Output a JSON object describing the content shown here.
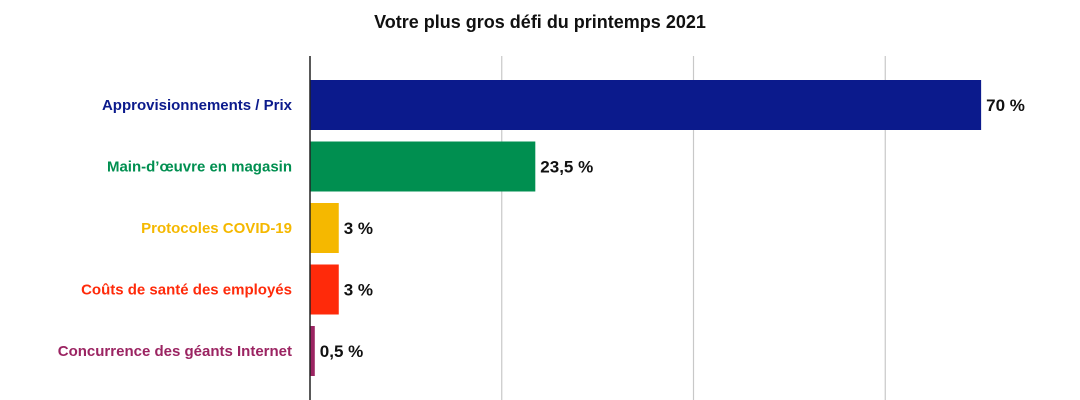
{
  "chart_data": {
    "type": "bar",
    "orientation": "horizontal",
    "title": "Votre plus gros défi du printemps 2021",
    "xlabel": "",
    "ylabel": "",
    "xlim": [
      0,
      80
    ],
    "grid": true,
    "legend": "none",
    "unit": "%",
    "categories": [
      "Approvisionnements / Prix",
      "Main-d’œuvre en magasin",
      "Protocoles COVID-19",
      "Coûts de santé des employés",
      "Concurrence des géants Internet"
    ],
    "values": [
      70,
      23.5,
      3,
      3,
      0.5
    ],
    "value_labels": [
      "70 %",
      "23,5 %",
      "3 %",
      "3 %",
      "0,5 %"
    ],
    "colors": [
      "#0b1a8c",
      "#008f50",
      "#f5b800",
      "#ff2a0a",
      "#9b2462"
    ]
  }
}
